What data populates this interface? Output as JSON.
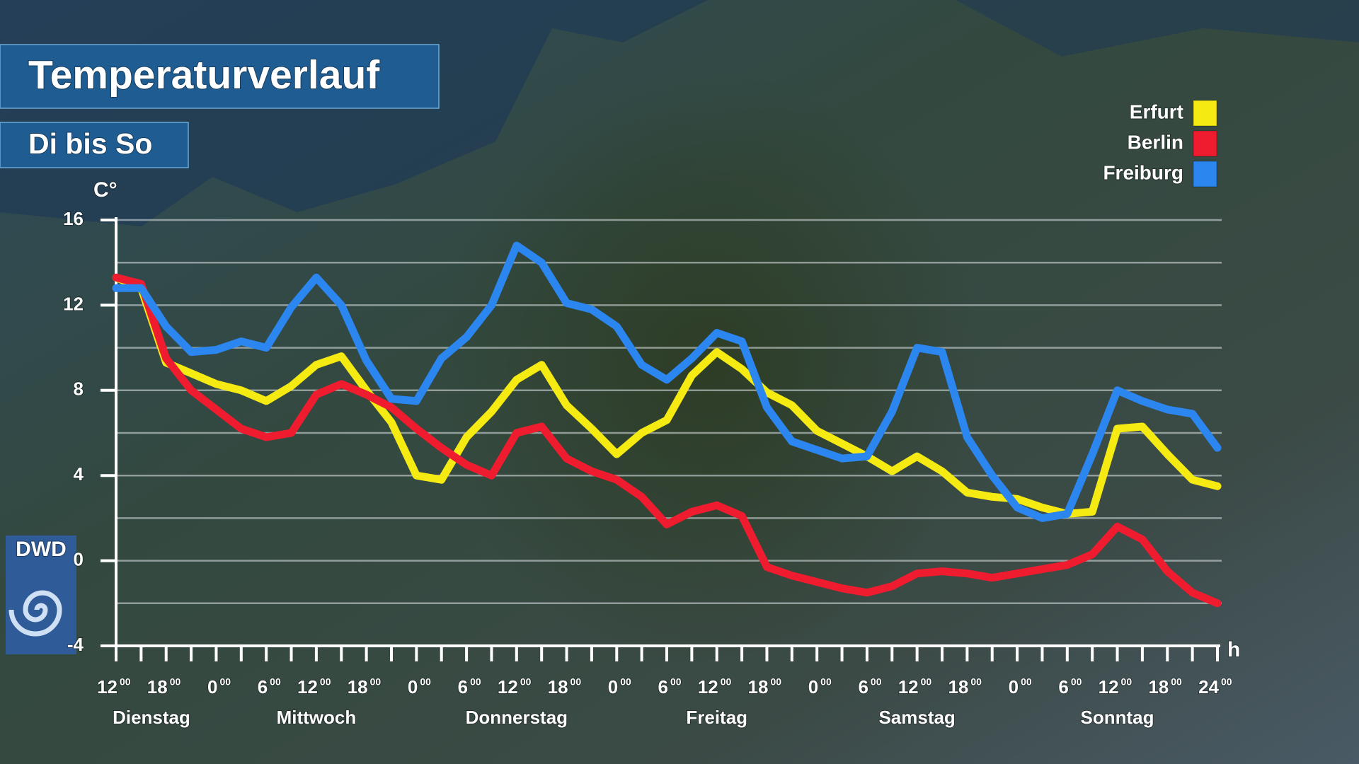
{
  "chart_data": {
    "type": "line",
    "title": "Temperaturverlauf",
    "subtitle": "Di bis So",
    "y_label": "C°",
    "x_label": "h",
    "logo": "DWD",
    "x": [
      0,
      3,
      6,
      9,
      12,
      15,
      18,
      21,
      24,
      27,
      30,
      33,
      36,
      39,
      42,
      45,
      48,
      51,
      54,
      57,
      60,
      63,
      66,
      69,
      72,
      75,
      78,
      81,
      84,
      87,
      90,
      93,
      96,
      99,
      102,
      105,
      108,
      111,
      114,
      117,
      120,
      123,
      126,
      129,
      132
    ],
    "xlim": [
      0,
      132
    ],
    "xticks": [
      0,
      3,
      6,
      9,
      12,
      15,
      18,
      21,
      24,
      27,
      30,
      33,
      36,
      39,
      42,
      45,
      48,
      51,
      54,
      57,
      60,
      63,
      66,
      69,
      72,
      75,
      78,
      81,
      84,
      87,
      90,
      93,
      96,
      99,
      102,
      105,
      108,
      111,
      114,
      117,
      120,
      123,
      126,
      129,
      132
    ],
    "xtick_labels": [
      {
        "value": 0,
        "label": "12"
      },
      {
        "value": 6,
        "label": "18"
      },
      {
        "value": 12,
        "label": "0"
      },
      {
        "value": 18,
        "label": "6"
      },
      {
        "value": 24,
        "label": "12"
      },
      {
        "value": 30,
        "label": "18"
      },
      {
        "value": 36,
        "label": "0"
      },
      {
        "value": 42,
        "label": "6"
      },
      {
        "value": 48,
        "label": "12"
      },
      {
        "value": 54,
        "label": "18"
      },
      {
        "value": 60,
        "label": "0"
      },
      {
        "value": 66,
        "label": "6"
      },
      {
        "value": 72,
        "label": "12"
      },
      {
        "value": 78,
        "label": "18"
      },
      {
        "value": 84,
        "label": "0"
      },
      {
        "value": 90,
        "label": "6"
      },
      {
        "value": 96,
        "label": "12"
      },
      {
        "value": 102,
        "label": "18"
      },
      {
        "value": 108,
        "label": "0"
      },
      {
        "value": 114,
        "label": "6"
      },
      {
        "value": 120,
        "label": "12"
      },
      {
        "value": 126,
        "label": "18"
      },
      {
        "value": 132,
        "label": "24"
      }
    ],
    "xtick_superscript": "00",
    "days": [
      "Dienstag",
      "Mittwoch",
      "Donnerstag",
      "Freitag",
      "Samstag",
      "Sonntag"
    ],
    "ylim": [
      -4,
      16
    ],
    "yticks": [
      -4,
      0,
      4,
      8,
      12,
      16
    ],
    "grid_yticks": [
      -2,
      0,
      2,
      4,
      6,
      8,
      10,
      12,
      14,
      16
    ],
    "grid": true,
    "legend": "top-right",
    "series": [
      {
        "name": "Erfurt",
        "color": "#f5ea12",
        "values": [
          13.3,
          12.8,
          9.3,
          8.8,
          8.3,
          8,
          7.5,
          8.2,
          9.2,
          9.6,
          8,
          6.5,
          4,
          3.8,
          5.8,
          7,
          8.5,
          9.2,
          7.3,
          6.2,
          5,
          6,
          6.6,
          8.7,
          9.8,
          9,
          7.9,
          7.3,
          6.1,
          5.5,
          4.9,
          4.2,
          4.9,
          4.2,
          3.2,
          3,
          2.9,
          2.5,
          2.2,
          2.3,
          6.2,
          6.3,
          5,
          3.8,
          3.5
        ]
      },
      {
        "name": "Berlin",
        "color": "#ee1c2e",
        "values": [
          13.3,
          13,
          9.5,
          8,
          7.1,
          6.2,
          5.8,
          6,
          7.8,
          8.3,
          7.8,
          7.2,
          6.2,
          5.3,
          4.5,
          4,
          6,
          6.3,
          4.8,
          4.2,
          3.8,
          3,
          1.7,
          2.3,
          2.6,
          2.1,
          -0.3,
          -0.7,
          -1,
          -1.3,
          -1.5,
          -1.2,
          -0.6,
          -0.5,
          -0.6,
          -0.8,
          -0.6,
          -0.4,
          -0.2,
          0.3,
          1.6,
          1,
          -0.5,
          -1.5,
          -2
        ]
      },
      {
        "name": "Freiburg",
        "color": "#2b86f0",
        "values": [
          12.8,
          12.8,
          11,
          9.8,
          9.9,
          10.3,
          10,
          11.9,
          13.3,
          12,
          9.4,
          7.6,
          7.5,
          9.5,
          10.5,
          12,
          14.8,
          14,
          12.1,
          11.8,
          11,
          9.2,
          8.5,
          9.5,
          10.7,
          10.3,
          7.2,
          5.6,
          5.2,
          4.8,
          4.9,
          7,
          10,
          9.8,
          5.8,
          4,
          2.5,
          2,
          2.2,
          5,
          8,
          7.5,
          7.1,
          6.9,
          5.3
        ]
      }
    ]
  }
}
